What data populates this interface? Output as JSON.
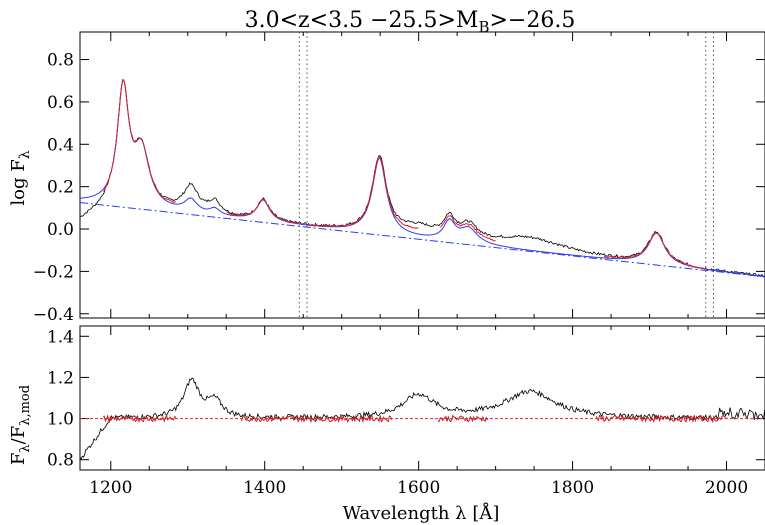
{
  "chart_data": [
    {
      "type": "line",
      "title": "3.0<z<3.5 −25.5>M",
      "title_sub": "B",
      "title_tail": ">−26.5",
      "ylabel": "log F",
      "ylabel_sub": "λ",
      "xlim": [
        1160,
        2050
      ],
      "ylim": [
        -0.42,
        0.93
      ],
      "xticks": [
        1200,
        1400,
        1600,
        1800,
        2000
      ],
      "yticks": [
        -0.4,
        -0.2,
        0.0,
        0.2,
        0.4,
        0.6,
        0.8
      ],
      "ytick_labels": [
        "−0.4",
        "−0.2",
        "0.0",
        "0.2",
        "0.4",
        "0.6",
        "0.8"
      ],
      "vlines": [
        1445,
        1455,
        1973,
        1983
      ],
      "continuum": {
        "slope_per_A": -0.000394,
        "anchor": [
          1160,
          0.125
        ]
      },
      "lines": [
        {
          "center": 1216,
          "amp": 0.55,
          "width": 9
        },
        {
          "center": 1240,
          "amp": 0.26,
          "width": 12
        },
        {
          "center": 1304,
          "amp": 0.06,
          "width": 10
        },
        {
          "center": 1335,
          "amp": 0.03,
          "width": 8
        },
        {
          "center": 1398,
          "amp": 0.1,
          "width": 10
        },
        {
          "center": 1549,
          "amp": 0.36,
          "width": 11
        },
        {
          "center": 1640,
          "amp": 0.09,
          "width": 9
        },
        {
          "center": 1665,
          "amp": 0.07,
          "width": 14
        },
        {
          "center": 1909,
          "amp": 0.15,
          "width": 13
        }
      ],
      "extra_observed": [
        {
          "center": 1304,
          "amp": 0.06,
          "width": 14
        },
        {
          "center": 1335,
          "amp": 0.03,
          "width": 12
        },
        {
          "center": 1600,
          "amp": 0.045,
          "width": 30
        },
        {
          "center": 1745,
          "amp": 0.06,
          "width": 55
        }
      ],
      "series": [
        {
          "role": "observed",
          "color": "#000000"
        },
        {
          "role": "model",
          "color": "#2a3df0"
        },
        {
          "role": "fit",
          "color": "#e0202a"
        },
        {
          "role": "continuum",
          "color": "#2a3df0"
        }
      ],
      "fit_ranges": [
        [
          1190,
          1285
        ],
        [
          1350,
          1445
        ],
        [
          1455,
          1600
        ],
        [
          1628,
          1700
        ],
        [
          1840,
          1975
        ]
      ]
    },
    {
      "type": "line",
      "xlabel": "Wavelength λ [Å]",
      "ylabel": "F",
      "ylabel_sub1": "λ",
      "ylabel_mid": "/F",
      "ylabel_sub2": "λ,mod",
      "xlim": [
        1160,
        2050
      ],
      "ylim": [
        0.75,
        1.45
      ],
      "xticks": [
        1200,
        1400,
        1600,
        1800,
        2000
      ],
      "yticks": [
        0.8,
        1.0,
        1.2,
        1.4
      ],
      "ytick_labels": [
        "0.8",
        "1.0",
        "1.2",
        "1.4"
      ],
      "reference": 1.0,
      "bumps": [
        {
          "center": 1305,
          "amp": 0.18,
          "width": 12
        },
        {
          "center": 1335,
          "amp": 0.08,
          "width": 12
        },
        {
          "center": 1600,
          "amp": 0.11,
          "width": 25
        },
        {
          "center": 1745,
          "amp": 0.13,
          "width": 40
        }
      ],
      "series": [
        {
          "role": "ratio",
          "color": "#000000"
        },
        {
          "role": "fit",
          "color": "#c0202a"
        },
        {
          "role": "reference",
          "color": "#e0202a"
        }
      ],
      "fit_ranges": [
        [
          1190,
          1285
        ],
        [
          1370,
          1565
        ],
        [
          1625,
          1690
        ],
        [
          1830,
          2000
        ]
      ]
    }
  ]
}
